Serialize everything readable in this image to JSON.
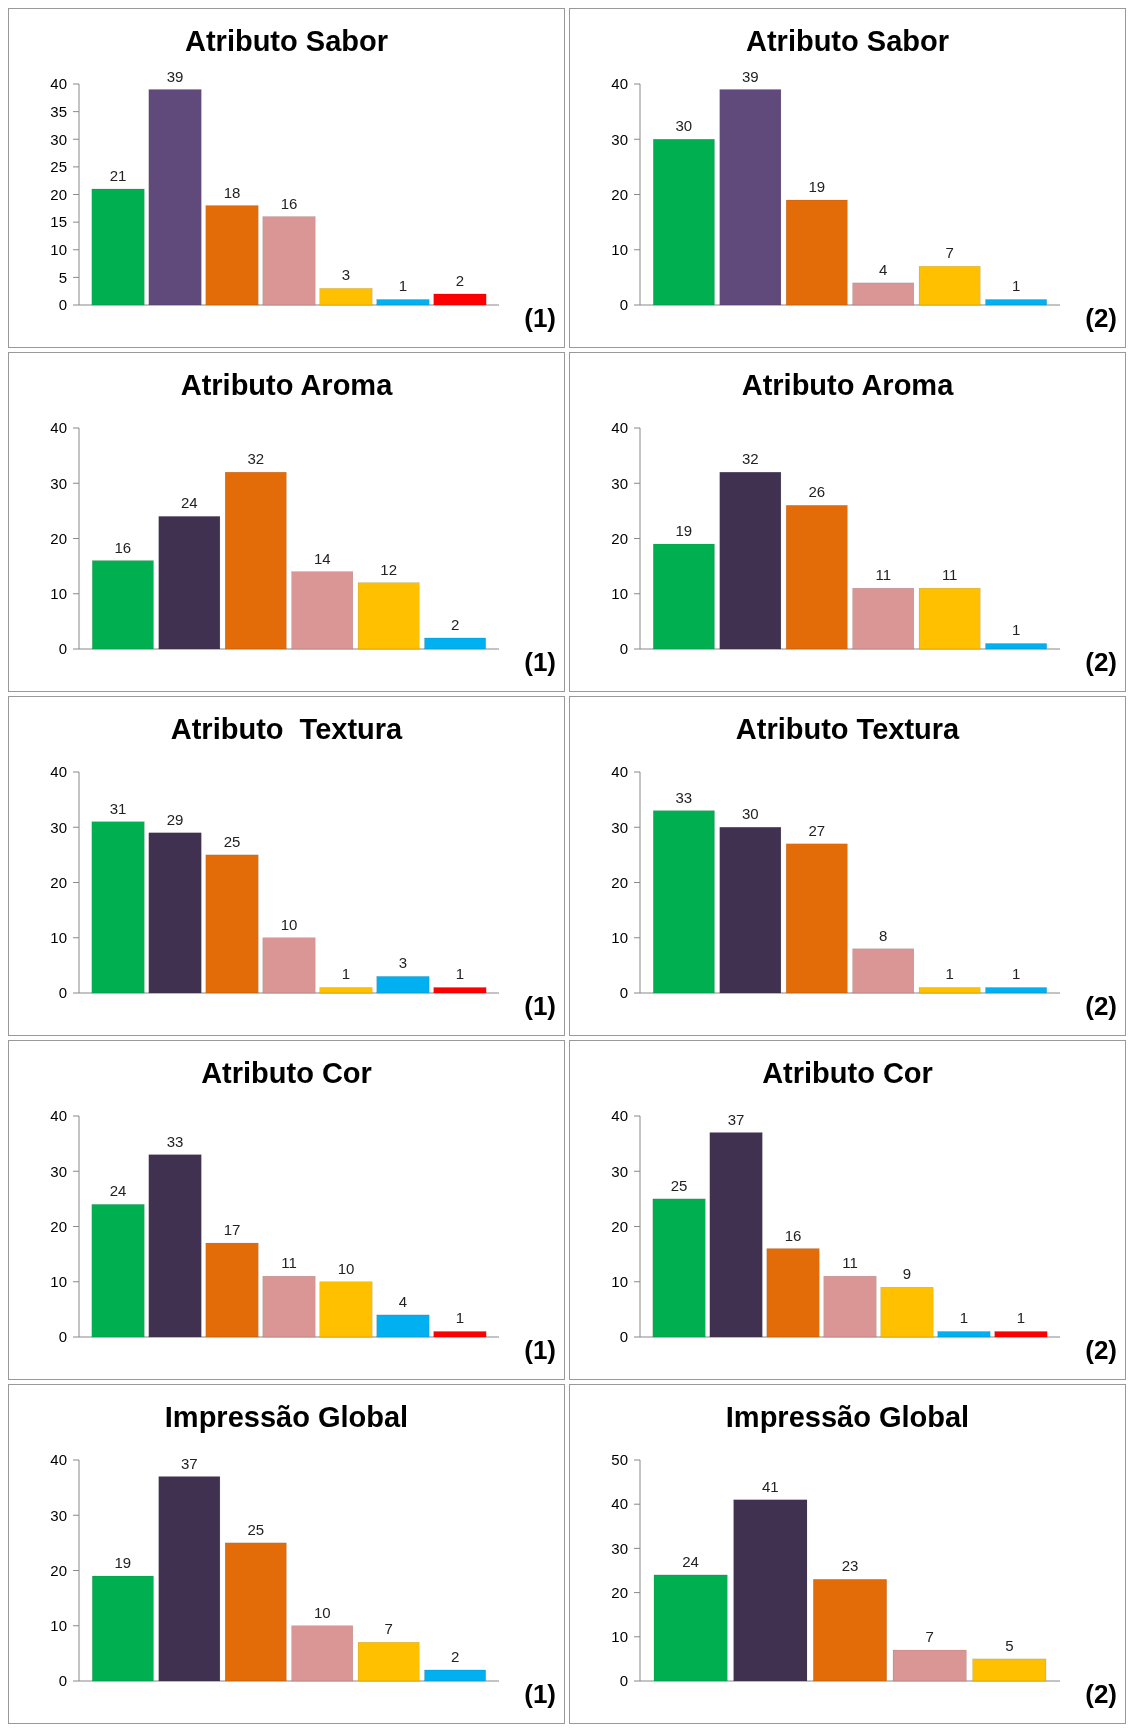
{
  "chart_data": [
    {
      "type": "bar",
      "title": "Atributo Sabor",
      "categories": [
        null,
        null,
        null,
        null,
        null,
        null,
        null
      ],
      "values": [
        21,
        39,
        18,
        16,
        3,
        1,
        2
      ],
      "colors": [
        "#00b050",
        "#604a7b",
        "#e36c09",
        "#d99694",
        "#ffc000",
        "#00b0f0",
        "#ff0000"
      ],
      "ylim": [
        0,
        40
      ],
      "yticks": [
        0,
        5,
        10,
        15,
        20,
        25,
        30,
        35,
        40
      ],
      "data_labels": true,
      "annotations": [
        "(1)"
      ]
    },
    {
      "type": "bar",
      "title": "Atributo Sabor",
      "categories": [
        null,
        null,
        null,
        null,
        null,
        null
      ],
      "values": [
        30,
        39,
        19,
        4,
        7,
        1
      ],
      "colors": [
        "#00b050",
        "#604a7b",
        "#e36c09",
        "#d99694",
        "#ffc000",
        "#00b0f0"
      ],
      "ylim": [
        0,
        40
      ],
      "yticks": [
        0,
        10,
        20,
        30,
        40
      ],
      "data_labels": true,
      "annotations": [
        "(2)"
      ]
    },
    {
      "type": "bar",
      "title": "Atributo Aroma",
      "categories": [
        null,
        null,
        null,
        null,
        null,
        null
      ],
      "values": [
        16,
        24,
        32,
        14,
        12,
        2
      ],
      "colors": [
        "#00b050",
        "#403151",
        "#e36c09",
        "#d99694",
        "#ffc000",
        "#00b0f0"
      ],
      "ylim": [
        0,
        40
      ],
      "yticks": [
        0,
        10,
        20,
        30,
        40
      ],
      "data_labels": true,
      "annotations": [
        "(1)"
      ]
    },
    {
      "type": "bar",
      "title": "Atributo Aroma",
      "categories": [
        null,
        null,
        null,
        null,
        null,
        null
      ],
      "values": [
        19,
        32,
        26,
        11,
        11,
        1
      ],
      "colors": [
        "#00b050",
        "#403151",
        "#e36c09",
        "#d99694",
        "#ffc000",
        "#00b0f0"
      ],
      "ylim": [
        0,
        40
      ],
      "yticks": [
        0,
        10,
        20,
        30,
        40
      ],
      "data_labels": true,
      "annotations": [
        "(2)"
      ]
    },
    {
      "type": "bar",
      "title": "Atributo  Textura",
      "categories": [
        null,
        null,
        null,
        null,
        null,
        null,
        null
      ],
      "values": [
        31,
        29,
        25,
        10,
        1,
        3,
        1
      ],
      "colors": [
        "#00b050",
        "#403151",
        "#e36c09",
        "#d99694",
        "#ffc000",
        "#00b0f0",
        "#ff0000"
      ],
      "ylim": [
        0,
        40
      ],
      "yticks": [
        0,
        10,
        20,
        30,
        40
      ],
      "data_labels": true,
      "annotations": [
        "(1)"
      ]
    },
    {
      "type": "bar",
      "title": "Atributo Textura",
      "categories": [
        null,
        null,
        null,
        null,
        null,
        null
      ],
      "values": [
        33,
        30,
        27,
        8,
        1,
        1
      ],
      "colors": [
        "#00b050",
        "#403151",
        "#e36c09",
        "#d99694",
        "#ffc000",
        "#00b0f0"
      ],
      "ylim": [
        0,
        40
      ],
      "yticks": [
        0,
        10,
        20,
        30,
        40
      ],
      "data_labels": true,
      "annotations": [
        "(2)"
      ]
    },
    {
      "type": "bar",
      "title": "Atributo Cor",
      "categories": [
        null,
        null,
        null,
        null,
        null,
        null,
        null
      ],
      "values": [
        24,
        33,
        17,
        11,
        10,
        4,
        1
      ],
      "colors": [
        "#00b050",
        "#403151",
        "#e36c09",
        "#d99694",
        "#ffc000",
        "#00b0f0",
        "#ff0000"
      ],
      "ylim": [
        0,
        40
      ],
      "yticks": [
        0,
        10,
        20,
        30,
        40
      ],
      "data_labels": true,
      "annotations": [
        "(1)"
      ]
    },
    {
      "type": "bar",
      "title": "Atributo Cor",
      "categories": [
        null,
        null,
        null,
        null,
        null,
        null,
        null
      ],
      "values": [
        25,
        37,
        16,
        11,
        9,
        1,
        1
      ],
      "colors": [
        "#00b050",
        "#403151",
        "#e36c09",
        "#d99694",
        "#ffc000",
        "#00b0f0",
        "#ff0000"
      ],
      "ylim": [
        0,
        40
      ],
      "yticks": [
        0,
        10,
        20,
        30,
        40
      ],
      "data_labels": true,
      "annotations": [
        "(2)"
      ]
    },
    {
      "type": "bar",
      "title": "Impressão Global",
      "categories": [
        null,
        null,
        null,
        null,
        null,
        null
      ],
      "values": [
        19,
        37,
        25,
        10,
        7,
        2
      ],
      "colors": [
        "#00b050",
        "#403151",
        "#e36c09",
        "#d99694",
        "#ffc000",
        "#00b0f0"
      ],
      "ylim": [
        0,
        40
      ],
      "yticks": [
        0,
        10,
        20,
        30,
        40
      ],
      "data_labels": true,
      "annotations": [
        "(1)"
      ]
    },
    {
      "type": "bar",
      "title": "Impressão Global",
      "categories": [
        null,
        null,
        null,
        null,
        null
      ],
      "values": [
        24,
        41,
        23,
        7,
        5
      ],
      "colors": [
        "#00b050",
        "#403151",
        "#e36c09",
        "#d99694",
        "#ffc000"
      ],
      "ylim": [
        0,
        50
      ],
      "yticks": [
        0,
        10,
        20,
        30,
        40,
        50
      ],
      "data_labels": true,
      "annotations": [
        "(2)"
      ]
    }
  ]
}
